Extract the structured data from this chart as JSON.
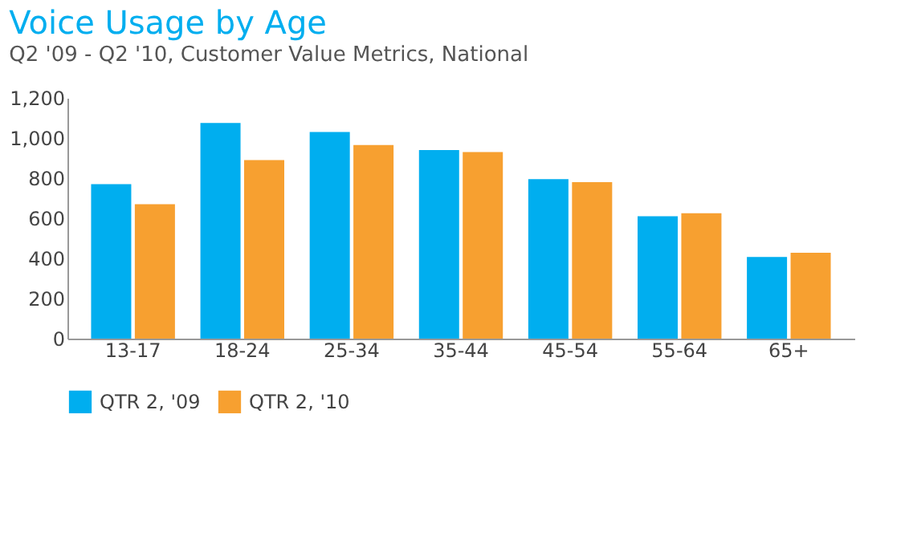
{
  "chart_data": {
    "type": "bar",
    "title": "Voice Usage by Age",
    "subtitle": "Q2 '09 - Q2 '10, Customer Value Metrics, National",
    "categories": [
      "13-17",
      "18-24",
      "25-34",
      "35-44",
      "45-54",
      "55-64",
      "65+"
    ],
    "series": [
      {
        "name": "QTR 2, '09",
        "color": "#00aeef",
        "values": [
          770,
          1075,
          1030,
          940,
          795,
          610,
          407
        ]
      },
      {
        "name": "QTR 2, '10",
        "color": "#f7a030",
        "values": [
          670,
          890,
          965,
          930,
          780,
          625,
          428
        ]
      }
    ],
    "ylim": [
      0,
      1200
    ],
    "yticks": [
      0,
      200,
      400,
      600,
      800,
      {
        "value": 1000,
        "label": "1,000"
      },
      {
        "value": 1200,
        "label": "1,200"
      }
    ],
    "grid": false,
    "legend": "bottom"
  }
}
